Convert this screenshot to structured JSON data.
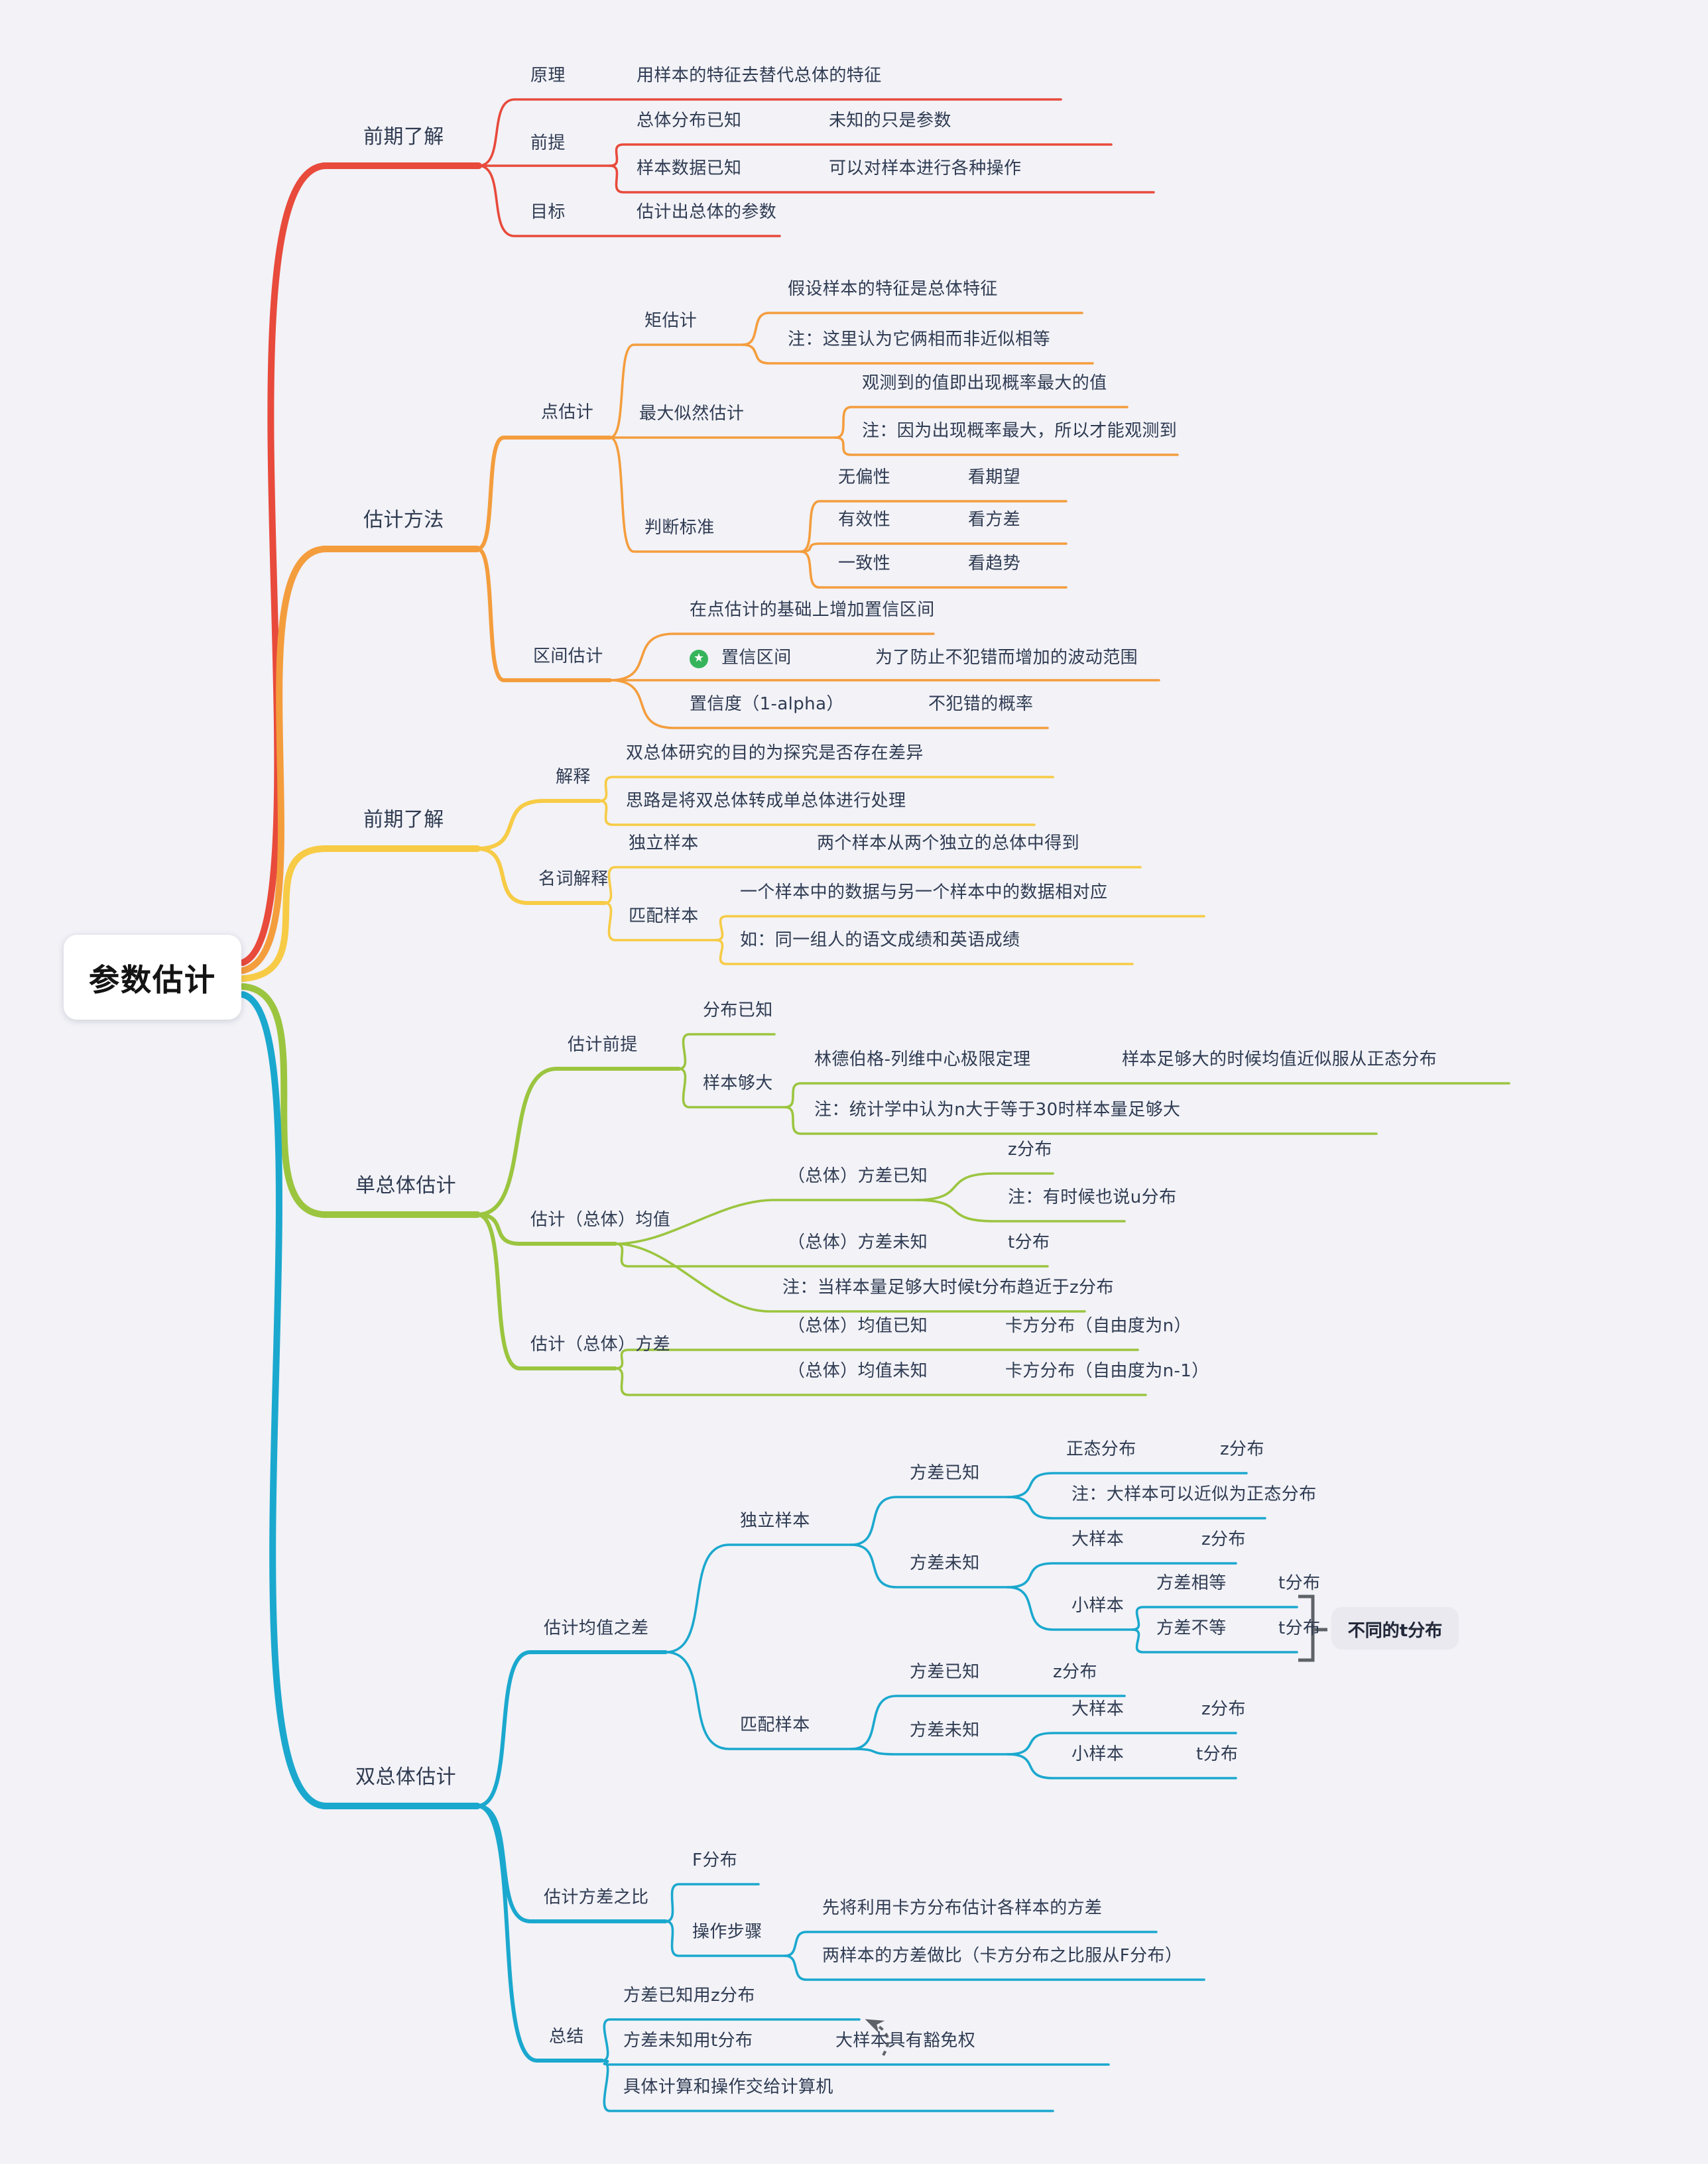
{
  "root": {
    "label": "参数估计"
  },
  "nodes": {
    "m1": "前期了解",
    "r_yuanli": "原理",
    "r_yuanli_val": "用样本的特征去替代总体的特征",
    "r_qianti": "前提",
    "r_zongti": "总体分布已知",
    "r_zongti_val": "未知的只是参数",
    "r_yangben": "样本数据已知",
    "r_yangben_val": "可以对样本进行各种操作",
    "r_mubiao": "目标",
    "r_mubiao_val": "估计出总体的参数",
    "m2": "估计方法",
    "o_dian": "点估计",
    "o_ju": "矩估计",
    "o_ju1": "假设样本的特征是总体特征",
    "o_ju2": "注：这里认为它俩相而非近似相等",
    "o_zuida": "最大似然估计",
    "o_zd1": "观测到的值即出现概率最大的值",
    "o_zd2": "注：因为出现概率最大，所以才能观测到",
    "o_pan": "判断标准",
    "o_p1": "无偏性",
    "o_p1_val": "看期望",
    "o_p2": "有效性",
    "o_p2_val": "看方差",
    "o_p3": "一致性",
    "o_p3_val": "看趋势",
    "o_qujian": "区间估计",
    "o_q1": "在点估计的基础上增加置信区间",
    "o_q2": "置信区间",
    "o_q2_val": "为了防止不犯错而增加的波动范围",
    "o_q3": "置信度（1-alpha）",
    "o_q3_val": "不犯错的概率",
    "m3": "前期了解",
    "y_jieshi": "解释",
    "y_j1": "双总体研究的目的为探究是否存在差异",
    "y_j2": "思路是将双总体转成单总体进行处理",
    "y_mingci": "名词解释",
    "y_duli": "独立样本",
    "y_duli_val": "两个样本从两个独立的总体中得到",
    "y_pipei": "匹配样本",
    "y_p1": "一个样本中的数据与另一个样本中的数据相对应",
    "y_p2": "如：同一组人的语文成绩和英语成绩",
    "m4": "单总体估计",
    "g_qianti": "估计前提",
    "g_q1": "分布已知",
    "g_q2": "样本够大",
    "g_q2a": "林德伯格-列维中心极限定理",
    "g_q2a_val": "样本足够大的时候均值近似服从正态分布",
    "g_q2b": "注：统计学中认为n大于等于30时样本量足够大",
    "g_junzhi": "估计（总体）均值",
    "g_j1": "（总体）方差已知",
    "g_j1a": "z分布",
    "g_j1b": "注：有时候也说u分布",
    "g_j2": "（总体）方差未知",
    "g_j2_val": "t分布",
    "g_j3": "注：当样本量足够大时候t分布趋近于z分布",
    "g_fangcha": "估计（总体）方差",
    "g_f1": "（总体）均值已知",
    "g_f1_val": "卡方分布（自由度为n）",
    "g_f2": "（总体）均值未知",
    "g_f2_val": "卡方分布（自由度为n-1）",
    "m5": "双总体估计",
    "b_junzhi": "估计均值之差",
    "b_duli": "独立样本",
    "b_d1": "方差已知",
    "b_d1a": "正态分布",
    "b_d1a_val": "z分布",
    "b_d1b": "注：大样本可以近似为正态分布",
    "b_d2": "方差未知",
    "b_d2a": "大样本",
    "b_d2a_val": "z分布",
    "b_d2b": "小样本",
    "b_s1": "方差相等",
    "b_s1_val": "t分布",
    "b_s2": "方差不等",
    "b_s2_val": "t分布",
    "b_callout": "不同的t分布",
    "b_pipei": "匹配样本",
    "b_p1": "方差已知",
    "b_p1_val": "z分布",
    "b_p2": "方差未知",
    "b_p2a": "大样本",
    "b_p2a_val": "z分布",
    "b_p2b": "小样本",
    "b_p2b_val": "t分布",
    "b_fangchabi": "估计方差之比",
    "b_f1": "F分布",
    "b_caozuo": "操作步骤",
    "b_c1": "先将利用卡方分布估计各样本的方差",
    "b_c2": "两样本的方差做比（卡方分布之比服从F分布）",
    "b_zongjie": "总结",
    "b_z1": "方差已知用z分布",
    "b_z2": "方差未知用t分布",
    "b_z2_val": "大样本具有豁免权",
    "b_z3": "具体计算和操作交给计算机"
  },
  "icons": {
    "confidence_badge": "star-icon",
    "summary_link": "dashed-arrow-icon",
    "star_glyph": "★"
  },
  "colors": {
    "red": "#E84A3B",
    "orange": "#F49D3D",
    "yellow": "#F7CB45",
    "green": "#9BC53F",
    "blue": "#1BA8CE",
    "text": "#2F3B52",
    "bracket": "#5F6368",
    "badge_green": "#36B45B",
    "background": "#F2F2F7",
    "callout_bg": "#E9E9EF"
  }
}
